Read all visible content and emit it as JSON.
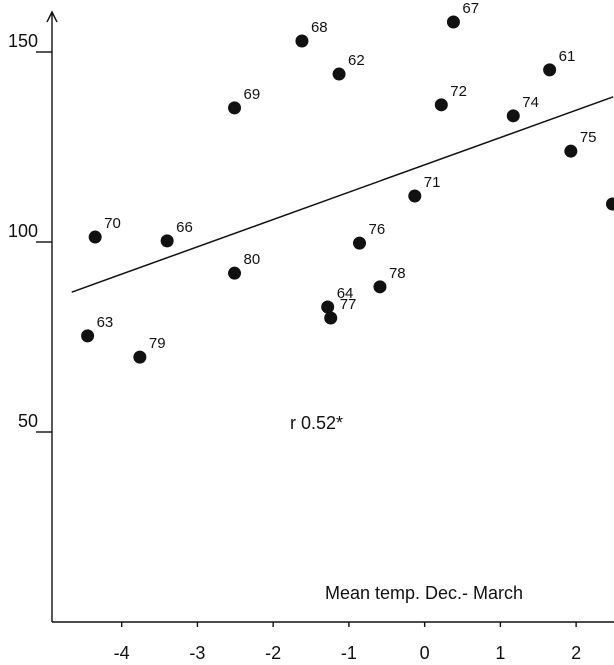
{
  "chart_data": {
    "type": "scatter",
    "x_label": "Mean temp. Dec.- March",
    "annotation": "r 0.52*",
    "labels": [
      "63",
      "79",
      "70",
      "66",
      "69",
      "80",
      "68",
      "62",
      "64",
      "77",
      "76",
      "78",
      "71",
      "72",
      "67",
      "74",
      "61",
      "75",
      null
    ],
    "x": [
      -4.45,
      -3.76,
      -4.35,
      -3.4,
      -2.51,
      -2.51,
      -1.62,
      -1.13,
      -1.28,
      -1.24,
      -0.86,
      -0.59,
      -0.13,
      0.22,
      0.38,
      1.17,
      1.65,
      1.93,
      2.48
    ],
    "values": [
      75.3,
      69.7,
      101.3,
      100.3,
      135.3,
      91.8,
      152.9,
      144.2,
      82.9,
      80,
      99.7,
      88.2,
      112.1,
      136.1,
      157.9,
      133.2,
      145.3,
      123.9,
      110
    ],
    "color": "#111111",
    "trend_line": {
      "x": [
        -4.66,
        2.49
      ],
      "y": [
        86.8,
        138.2
      ]
    },
    "xlim": [
      -4.92,
      2.5
    ],
    "ylim": [
      0,
      160
    ],
    "xticks": [
      -4,
      -3,
      -2,
      -1,
      0,
      1,
      2
    ],
    "yticks": [
      50,
      100,
      150
    ]
  }
}
